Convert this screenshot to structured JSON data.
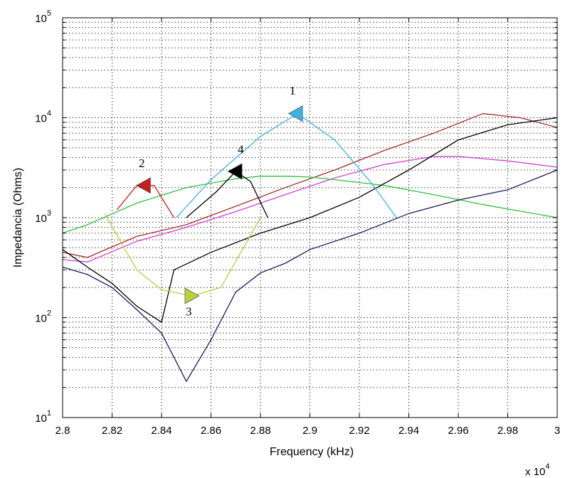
{
  "chart_data": {
    "type": "line",
    "xlabel": "Frequency (kHz)",
    "ylabel": "Impedancia (Ohms)",
    "x_multiplier_label": "x 10",
    "x_multiplier_exponent": "4",
    "xlim": [
      28000,
      30000
    ],
    "ylim": [
      10,
      100000
    ],
    "y_scale": "log",
    "grid": true,
    "x_ticks": [
      {
        "value": 28000,
        "label": "2.8"
      },
      {
        "value": 28200,
        "label": "2.82"
      },
      {
        "value": 28400,
        "label": "2.84"
      },
      {
        "value": 28600,
        "label": "2.86"
      },
      {
        "value": 28800,
        "label": "2.88"
      },
      {
        "value": 29000,
        "label": "2.9"
      },
      {
        "value": 29200,
        "label": "2.92"
      },
      {
        "value": 29400,
        "label": "2.94"
      },
      {
        "value": 29600,
        "label": "2.96"
      },
      {
        "value": 29800,
        "label": "2.98"
      },
      {
        "value": 30000,
        "label": "3"
      }
    ],
    "y_ticks": [
      {
        "value": 10,
        "base": "10",
        "exp": "1"
      },
      {
        "value": 100,
        "base": "10",
        "exp": "2"
      },
      {
        "value": 1000,
        "base": "10",
        "exp": "3"
      },
      {
        "value": 10000,
        "base": "10",
        "exp": "4"
      },
      {
        "value": 100000,
        "base": "10",
        "exp": "5"
      }
    ],
    "series": [
      {
        "color": "#a0302a",
        "x": [
          28000,
          28100,
          28300,
          28500,
          28700,
          28900,
          29100,
          29300,
          29500,
          29700,
          29850,
          30000
        ],
        "y": [
          450,
          400,
          650,
          850,
          1300,
          2000,
          3000,
          4700,
          7000,
          11000,
          10000,
          8000
        ]
      },
      {
        "color": "#d040d0",
        "x": [
          28000,
          28100,
          28300,
          28500,
          28700,
          28900,
          29100,
          29300,
          29500,
          29600,
          29800,
          30000
        ],
        "y": [
          380,
          360,
          580,
          800,
          1150,
          1700,
          2500,
          3400,
          4100,
          4100,
          3700,
          3200
        ]
      },
      {
        "color": "#30c040",
        "x": [
          28000,
          28100,
          28300,
          28500,
          28700,
          28800,
          28900,
          29000,
          29100,
          29300,
          29500,
          29700,
          30000
        ],
        "y": [
          700,
          850,
          1400,
          2000,
          2450,
          2600,
          2600,
          2550,
          2400,
          2100,
          1700,
          1350,
          1000
        ]
      },
      {
        "color": "#000000",
        "x": [
          28000,
          28100,
          28200,
          28300,
          28400,
          28450,
          28600,
          28800,
          29000,
          29200,
          29400,
          29600,
          29800,
          30000
        ],
        "y": [
          480,
          320,
          220,
          130,
          90,
          300,
          450,
          700,
          1000,
          1600,
          3000,
          6000,
          8500,
          10000
        ]
      },
      {
        "color": "#1a1a60",
        "x": [
          28000,
          28100,
          28200,
          28300,
          28400,
          28500,
          28600,
          28700,
          28800,
          28900,
          29000,
          29200,
          29400,
          29600,
          29800,
          30000
        ],
        "y": [
          320,
          270,
          200,
          120,
          70,
          23,
          60,
          180,
          280,
          350,
          480,
          700,
          1100,
          1500,
          1900,
          3000
        ]
      }
    ],
    "resonances": [
      {
        "label": "1",
        "color": "#40b0e0",
        "x": [
          28460,
          28600,
          28800,
          28950,
          29100,
          29250,
          29350
        ],
        "y": [
          1000,
          2400,
          6500,
          11000,
          6000,
          2200,
          1000
        ],
        "marker_x": 28945,
        "marker_y": 11000,
        "marker_dir": "left",
        "label_x": 28930,
        "label_y": 17000
      },
      {
        "label": "2",
        "color": "#c02020",
        "x": [
          28220,
          28300,
          28370,
          28450
        ],
        "y": [
          1200,
          2100,
          2100,
          1000
        ],
        "marker_x": 28330,
        "marker_y": 2100,
        "marker_dir": "left",
        "label_x": 28320,
        "label_y": 3200
      },
      {
        "label": "3",
        "color": "#b8d040",
        "x": [
          28170,
          28300,
          28400,
          28520,
          28640,
          28800
        ],
        "y": [
          1100,
          300,
          190,
          165,
          200,
          1000
        ],
        "marker_x": 28520,
        "marker_y": 165,
        "marker_dir": "right",
        "label_x": 28510,
        "label_y": 105
      },
      {
        "label": "4",
        "color": "#000000",
        "x": [
          28500,
          28620,
          28700,
          28760,
          28830
        ],
        "y": [
          1000,
          1800,
          2900,
          2300,
          1000
        ],
        "marker_x": 28700,
        "marker_y": 2900,
        "marker_dir": "left",
        "label_x": 28720,
        "label_y": 4400
      }
    ]
  }
}
